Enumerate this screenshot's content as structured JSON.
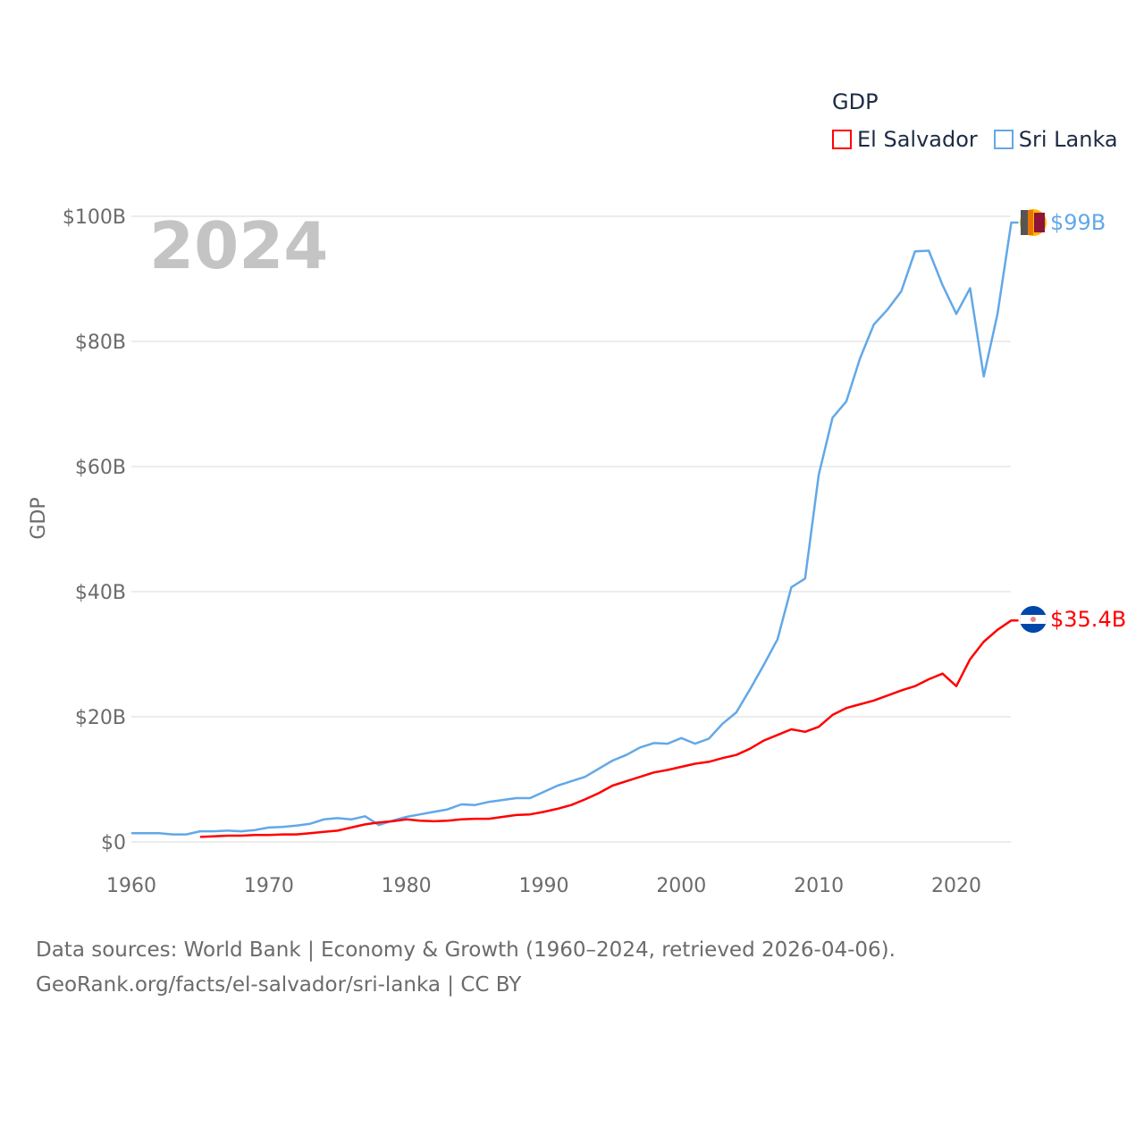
{
  "legend": {
    "title": "GDP",
    "items": [
      {
        "name": "El Salvador",
        "color": "#ff0000"
      },
      {
        "name": "Sri Lanka",
        "color": "#62a8e8"
      }
    ]
  },
  "year_watermark": "2024",
  "end_labels": {
    "sri_lanka": "$99B",
    "el_salvador": "$35.4B"
  },
  "footer": {
    "line1": "Data sources: World Bank | Economy & Growth (1960–2024, retrieved 2026-04-06).",
    "line2": "GeoRank.org/facts/el-salvador/sri-lanka | CC BY"
  },
  "chart_data": {
    "type": "line",
    "title": "GDP",
    "xlabel": "",
    "ylabel": "GDP",
    "xlim": [
      1960,
      2024
    ],
    "ylim": [
      0,
      100
    ],
    "y_unit": "billion USD",
    "x_ticks": [
      "1960",
      "1970",
      "1980",
      "1990",
      "2000",
      "2010",
      "2020"
    ],
    "y_ticks": [
      "$0",
      "$20B",
      "$40B",
      "$60B",
      "$80B",
      "$100B"
    ],
    "grid": true,
    "legend_position": "top-right",
    "series": [
      {
        "name": "Sri Lanka",
        "color": "#62a8e8",
        "start_year": 1960,
        "values": [
          1.4,
          1.4,
          1.4,
          1.2,
          1.2,
          1.7,
          1.7,
          1.8,
          1.7,
          1.9,
          2.3,
          2.4,
          2.6,
          2.9,
          3.6,
          3.8,
          3.6,
          4.1,
          2.7,
          3.4,
          4.0,
          4.4,
          4.8,
          5.2,
          6.0,
          5.9,
          6.4,
          6.7,
          7.0,
          7.0,
          8.0,
          9.0,
          9.7,
          10.4,
          11.7,
          13.0,
          13.9,
          15.1,
          15.8,
          15.7,
          16.6,
          15.7,
          16.5,
          18.9,
          20.7,
          24.4,
          28.3,
          32.4,
          40.7,
          42.1,
          58.7,
          67.8,
          70.4,
          77.3,
          82.7,
          85.1,
          88.0,
          94.4,
          94.5,
          89.0,
          84.4,
          88.5,
          74.4,
          84.4,
          99.0
        ]
      },
      {
        "name": "El Salvador",
        "color": "#ff0000",
        "start_year": 1965,
        "values": [
          0.8,
          0.9,
          1.0,
          1.0,
          1.1,
          1.1,
          1.2,
          1.2,
          1.4,
          1.6,
          1.8,
          2.3,
          2.8,
          3.1,
          3.3,
          3.6,
          3.4,
          3.3,
          3.4,
          3.6,
          3.7,
          3.7,
          4.0,
          4.3,
          4.4,
          4.8,
          5.3,
          5.9,
          6.8,
          7.8,
          9.0,
          9.7,
          10.4,
          11.1,
          11.5,
          12.0,
          12.5,
          12.8,
          13.4,
          13.9,
          14.9,
          16.2,
          17.1,
          18.0,
          17.6,
          18.4,
          20.3,
          21.4,
          22.0,
          22.6,
          23.4,
          24.2,
          24.9,
          26.0,
          26.9,
          24.9,
          29.2,
          32.0,
          33.9,
          35.4
        ]
      }
    ]
  }
}
